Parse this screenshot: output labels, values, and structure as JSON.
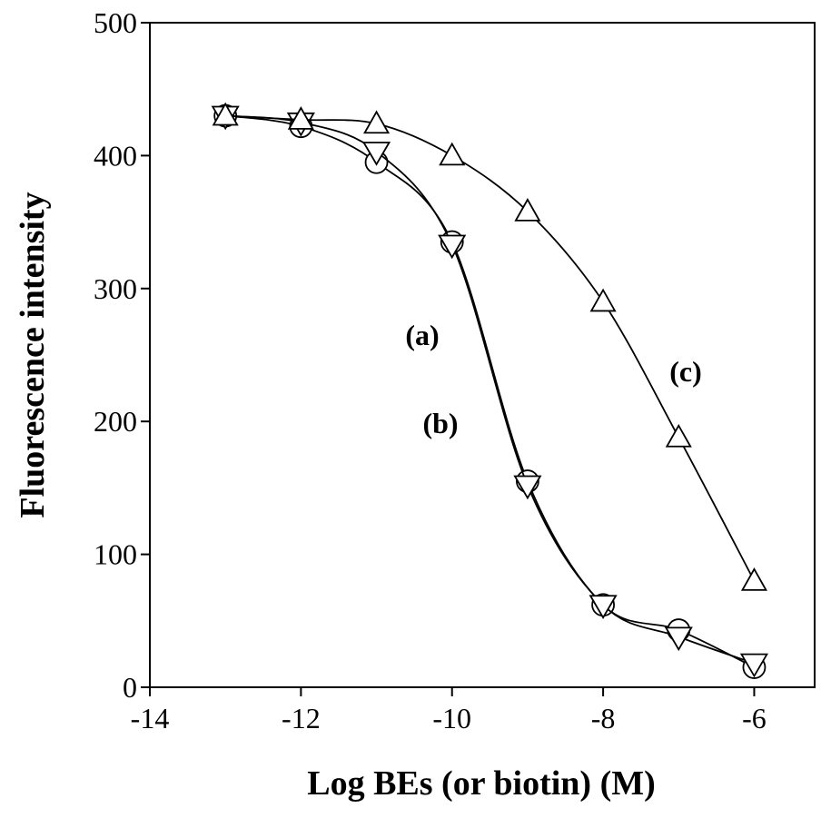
{
  "chart_data": {
    "type": "line",
    "xlabel": "Log BEs (or biotin) (M)",
    "ylabel": "Fluorescence intensity",
    "x": [
      -13,
      -12,
      -11,
      -10,
      -9,
      -8,
      -7,
      -6
    ],
    "series": [
      {
        "name": "(a)",
        "marker": "circle",
        "color": "#000000",
        "values": [
          430,
          422,
          395,
          335,
          155,
          62,
          43,
          15
        ]
      },
      {
        "name": "(b)",
        "marker": "triangle-down",
        "color": "#000000",
        "values": [
          430,
          425,
          403,
          333,
          152,
          62,
          38,
          18
        ]
      },
      {
        "name": "(c)",
        "marker": "triangle-up",
        "color": "#000000",
        "values": [
          430,
          427,
          424,
          400,
          358,
          290,
          188,
          80
        ]
      }
    ],
    "xlim": [
      -14,
      -5.2
    ],
    "xticks": [
      -14,
      -12,
      -10,
      -8,
      -6
    ],
    "ylim": [
      0,
      500
    ],
    "yticks": [
      0,
      100,
      200,
      300,
      400,
      500
    ],
    "grid": false
  }
}
